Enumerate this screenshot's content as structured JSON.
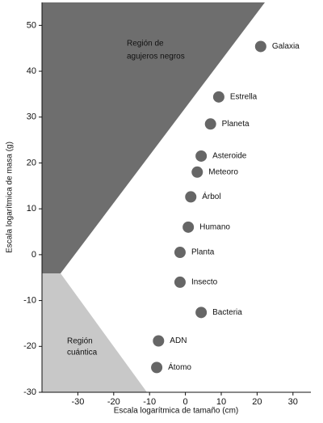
{
  "chart_data": {
    "type": "scatter",
    "x_label": "Escala logarítmica de tamaño (cm)",
    "y_label": "Escala logarítmica de masa (g)",
    "region_labels": [
      [
        "Región de",
        "agujeros negros"
      ],
      [
        "Región",
        "cuántica"
      ]
    ],
    "labels": [
      "Galaxia",
      "Estrella",
      "Planeta",
      "Asteroide",
      "Meteoro",
      "Árbol",
      "Humano",
      "Planta",
      "Insecto",
      "Bacteria",
      "ADN",
      "Átomo"
    ],
    "x": [
      21,
      9.3,
      7,
      4.4,
      3.3,
      1.5,
      0.8,
      -1.5,
      -1.5,
      4.4,
      -7.5,
      -8
    ],
    "y": [
      45.4,
      34.4,
      28.5,
      21.5,
      18,
      12.6,
      6,
      0.5,
      -6,
      -12.6,
      -18.8,
      -24.6
    ],
    "color": "#333333",
    "xlim": [
      -40,
      35
    ],
    "ylim": [
      -30,
      55
    ],
    "xticks": [
      -30,
      -20,
      -10,
      0,
      10,
      20,
      30
    ],
    "yticks": [
      -30,
      -20,
      -10,
      0,
      10,
      20,
      30,
      40,
      50
    ]
  }
}
